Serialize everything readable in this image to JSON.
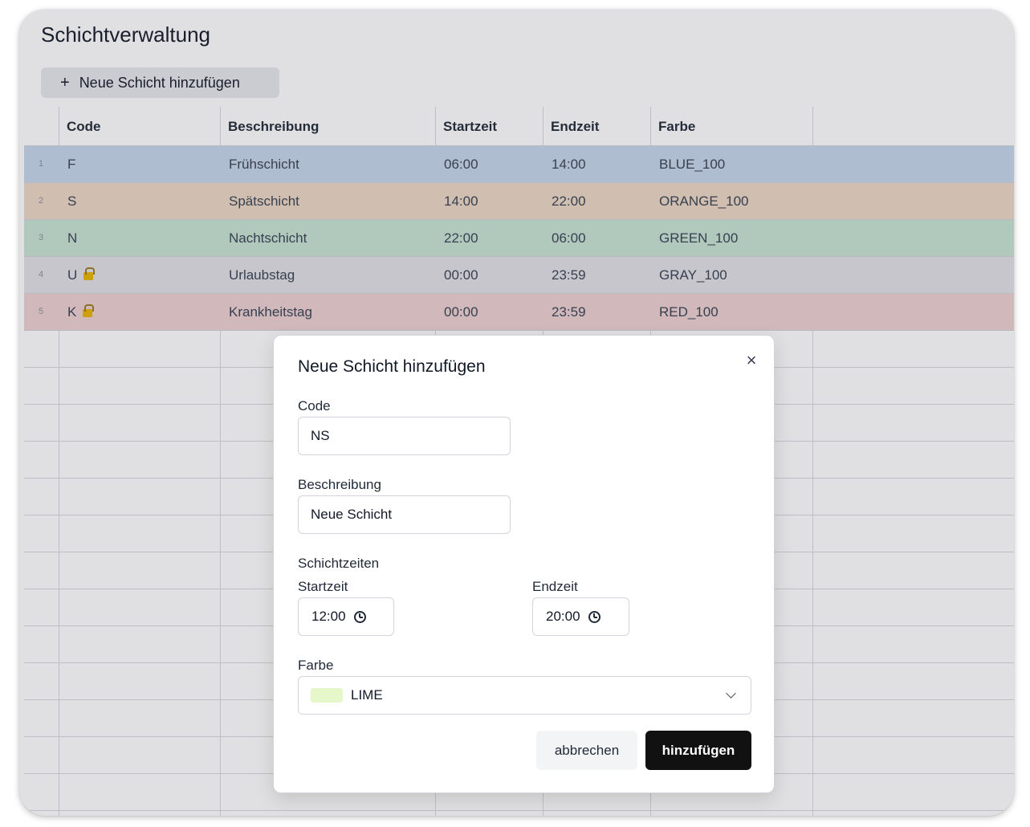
{
  "app": {
    "title": "Schichtverwaltung",
    "add_button_icon": "+",
    "add_button_label": "Neue Schicht hinzufügen"
  },
  "table": {
    "columns": [
      "Code",
      "Beschreibung",
      "Startzeit",
      "Endzeit",
      "Farbe"
    ],
    "rows": [
      {
        "num": "1",
        "code": "F",
        "locked": false,
        "beschreibung": "Frühschicht",
        "start": "06:00",
        "ende": "14:00",
        "farbe": "BLUE_100",
        "bg": "#c5d6ea"
      },
      {
        "num": "2",
        "code": "S",
        "locked": false,
        "beschreibung": "Spätschicht",
        "start": "14:00",
        "ende": "22:00",
        "farbe": "ORANGE_100",
        "bg": "#ecd8c4"
      },
      {
        "num": "3",
        "code": "N",
        "locked": false,
        "beschreibung": "Nachtschicht",
        "start": "22:00",
        "ende": "06:00",
        "farbe": "GREEN_100",
        "bg": "#c7e3d3"
      },
      {
        "num": "4",
        "code": "U",
        "locked": true,
        "beschreibung": "Urlaubstag",
        "start": "00:00",
        "ende": "23:59",
        "farbe": "GRAY_100",
        "bg": "#e0e1e5"
      },
      {
        "num": "5",
        "code": "K",
        "locked": true,
        "beschreibung": "Krankheitstag",
        "start": "00:00",
        "ende": "23:59",
        "farbe": "RED_100",
        "bg": "#ecd0d1"
      }
    ]
  },
  "dialog": {
    "title": "Neue Schicht hinzufügen",
    "close_icon": "×",
    "code_label": "Code",
    "code_value": "NS",
    "beschreibung_label": "Beschreibung",
    "beschreibung_value": "Neue Schicht",
    "zeiten_label": "Schichtzeiten",
    "start_label": "Startzeit",
    "start_value": "12:00",
    "end_label": "Endzeit",
    "end_value": "20:00",
    "farbe_label": "Farbe",
    "farbe_value": "LIME",
    "farbe_swatch": "#e6f7c9",
    "cancel_label": "abbrechen",
    "submit_label": "hinzufügen"
  }
}
